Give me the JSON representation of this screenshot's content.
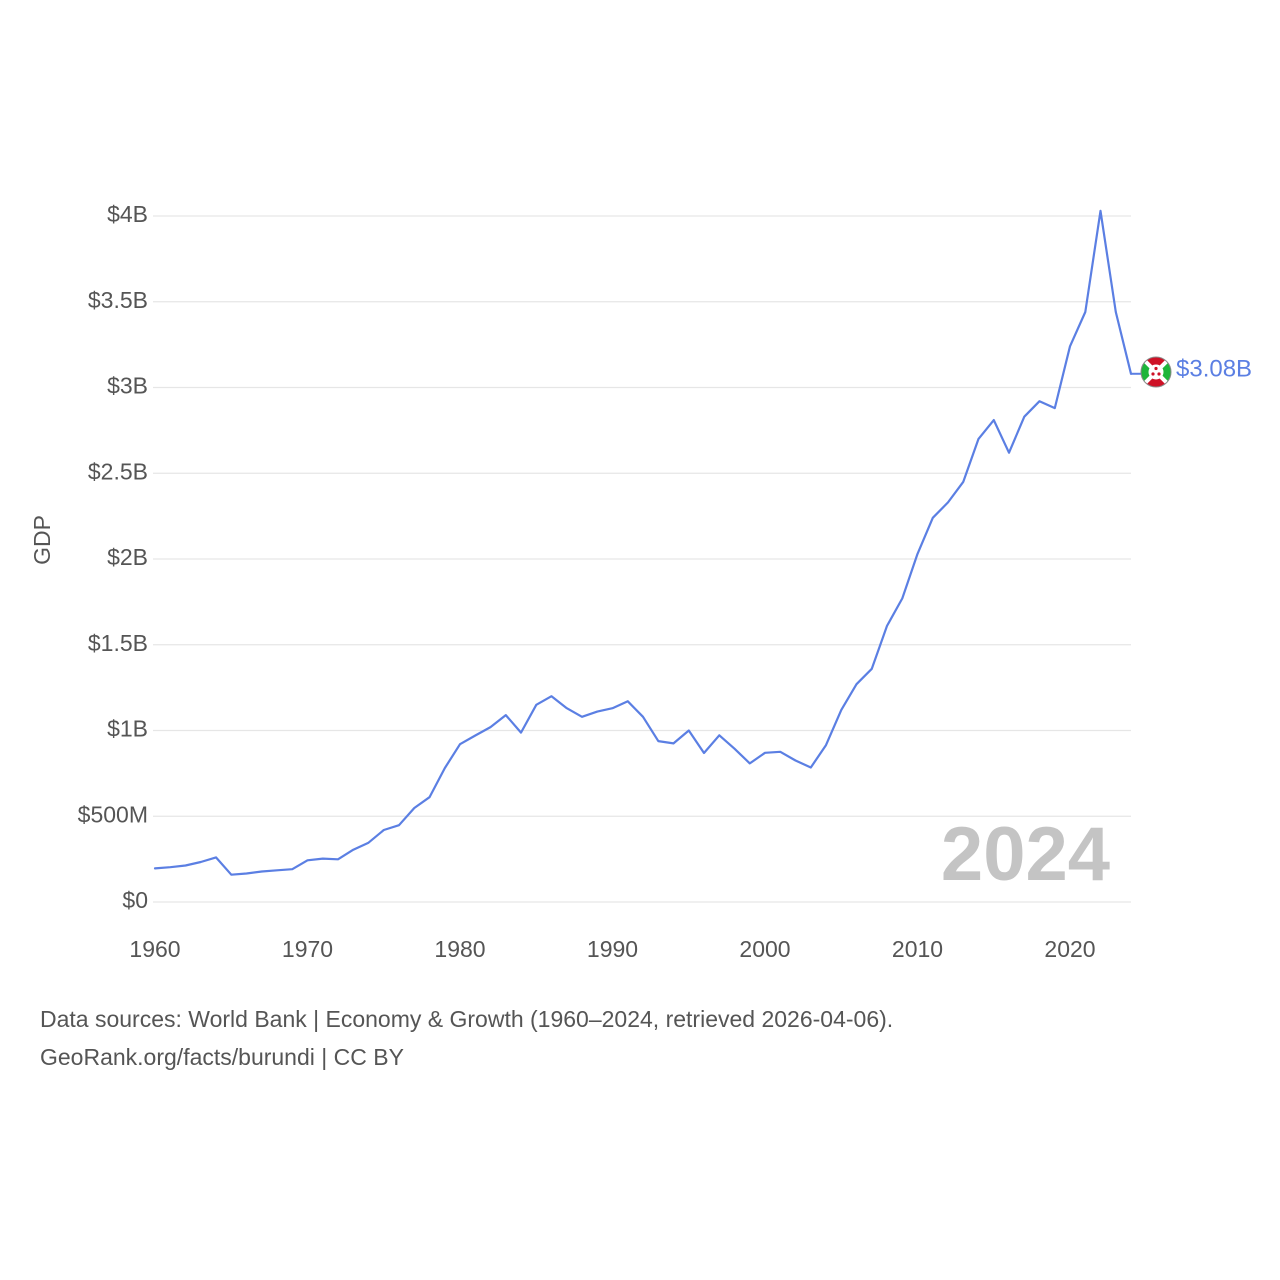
{
  "chart_data": {
    "type": "line",
    "title": "",
    "xlabel": "",
    "ylabel": "GDP",
    "xlim": [
      1960,
      2024
    ],
    "ylim": [
      0,
      4000000000
    ],
    "grid": true,
    "x_ticks": [
      1960,
      1970,
      1980,
      1990,
      2000,
      2010,
      2020
    ],
    "x_tick_labels": [
      "1960",
      "1970",
      "1980",
      "1990",
      "2000",
      "2010",
      "2020"
    ],
    "y_ticks": [
      0,
      500000000,
      1000000000,
      1500000000,
      2000000000,
      2500000000,
      3000000000,
      3500000000,
      4000000000
    ],
    "y_tick_labels": [
      "$0",
      "$500M",
      "$1B",
      "$1.5B",
      "$2B",
      "$2.5B",
      "$3B",
      "$3.5B",
      "$4B"
    ],
    "current_year_label": "2024",
    "series": [
      {
        "name": "Burundi",
        "color": "#5b7fe3",
        "end_label": "$3.08B",
        "flag_icon": "burundi-flag-icon",
        "x": [
          1960,
          1961,
          1962,
          1963,
          1964,
          1965,
          1966,
          1967,
          1968,
          1969,
          1970,
          1971,
          1972,
          1973,
          1974,
          1975,
          1976,
          1977,
          1978,
          1979,
          1980,
          1981,
          1982,
          1983,
          1984,
          1985,
          1986,
          1987,
          1988,
          1989,
          1990,
          1991,
          1992,
          1993,
          1994,
          1995,
          1996,
          1997,
          1998,
          1999,
          2000,
          2001,
          2002,
          2003,
          2004,
          2005,
          2006,
          2007,
          2008,
          2009,
          2010,
          2011,
          2012,
          2013,
          2014,
          2015,
          2016,
          2017,
          2018,
          2019,
          2020,
          2021,
          2022,
          2023,
          2024
        ],
        "values": [
          196000000,
          203000000,
          213000000,
          233000000,
          260000000,
          159000000,
          166000000,
          178000000,
          185000000,
          191000000,
          243000000,
          253000000,
          249000000,
          305000000,
          346000000,
          420000000,
          448000000,
          548000000,
          611000000,
          781000000,
          920000000,
          971000000,
          1020000000,
          1090000000,
          988000000,
          1150000000,
          1200000000,
          1130000000,
          1080000000,
          1110000000,
          1130000000,
          1170000000,
          1080000000,
          938000000,
          925000000,
          1000000000,
          869000000,
          972000000,
          894000000,
          808000000,
          870000000,
          876000000,
          825000000,
          784000000,
          915000000,
          1120000000,
          1270000000,
          1360000000,
          1610000000,
          1770000000,
          2030000000,
          2240000000,
          2330000000,
          2450000000,
          2700000000,
          2810000000,
          2620000000,
          2830000000,
          2920000000,
          2880000000,
          3240000000,
          3440000000,
          4030000000,
          3440000000,
          3080000000
        ]
      }
    ]
  },
  "footer": {
    "line1": "Data sources: World Bank | Economy & Growth (1960–2024, retrieved 2026-04-06).",
    "line2": "GeoRank.org/facts/burundi | CC BY"
  }
}
